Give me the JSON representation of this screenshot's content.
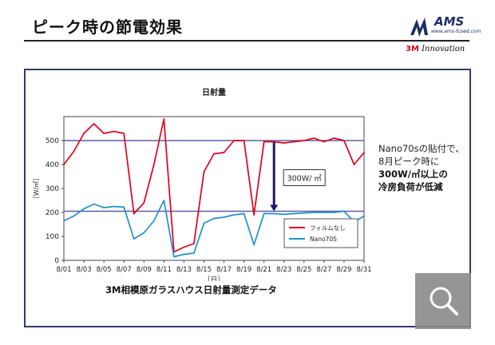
{
  "page": {
    "title": "ピーク時の節電効果"
  },
  "logo": {
    "name": "AMS",
    "url_text": "www.ams-fused.com"
  },
  "brand": {
    "mark": "3M",
    "text": "Innovation"
  },
  "note": {
    "line1": "Nano70sの貼付で、",
    "line2": "8月ピーク時に",
    "line3": "300W/㎡以上の",
    "line4": "冷房負荷が低減"
  },
  "caption": "3M相模原ガラスハウス日射量測定データ",
  "colors": {
    "film_none": "#e3001b",
    "nano70s": "#1e90d6",
    "frame": "#2c3e6e",
    "reference_line": "#5a5fa8",
    "arrow": "#1a1a66"
  },
  "chart_data": {
    "type": "line",
    "title": "日射量",
    "xlabel": "［日］",
    "ylabel": "［W/㎡］",
    "ylim": [
      0,
      600
    ],
    "yticks": [
      "0",
      "100",
      "200",
      "300",
      "400",
      "500"
    ],
    "x_tick_labels": [
      "8/01",
      "8/03",
      "8/05",
      "8/07",
      "8/09",
      "8/11",
      "8/13",
      "8/15",
      "8/17",
      "8/19",
      "8/21",
      "8/23",
      "8/25",
      "8/27",
      "8/29",
      "8/31"
    ],
    "x_start_label": "8/01",
    "legend_position": "bottom-right",
    "annotation": "300W/ ㎡",
    "reference_lines": [
      500,
      205
    ],
    "series": [
      {
        "name": "フィルムなし",
        "values": [
          400,
          455,
          530,
          570,
          530,
          538,
          530,
          195,
          240,
          400,
          590,
          35,
          55,
          70,
          370,
          445,
          450,
          500,
          500,
          190,
          495,
          495,
          490,
          495,
          500,
          510,
          495,
          510,
          500,
          400,
          450
        ]
      },
      {
        "name": "Nano70S",
        "values": [
          165,
          185,
          215,
          235,
          220,
          225,
          222,
          90,
          115,
          165,
          250,
          15,
          25,
          30,
          155,
          175,
          180,
          190,
          195,
          65,
          195,
          195,
          192,
          195,
          198,
          200,
          200,
          200,
          205,
          160,
          185
        ]
      }
    ]
  }
}
